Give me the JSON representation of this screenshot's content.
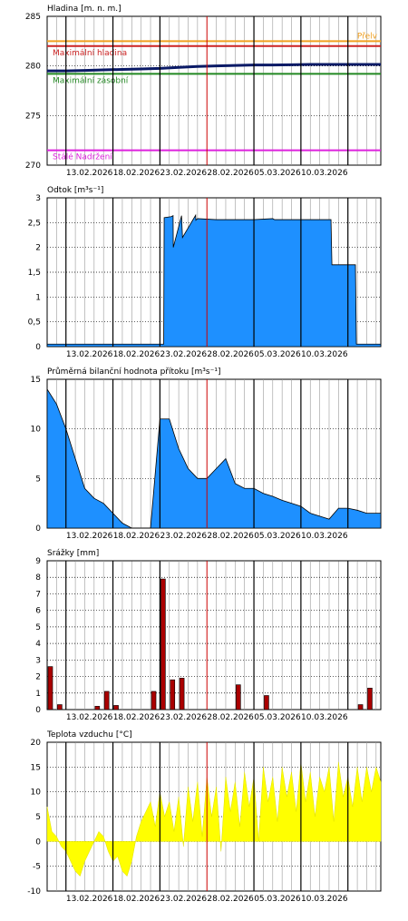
{
  "xticks": [
    "13.02.2026",
    "18.02.2026",
    "23.02.2026",
    "28.02.2026",
    "05.03.2026",
    "10.03.2026"
  ],
  "chart_data": [
    {
      "type": "line",
      "title": "Hladina [m. n. m.]",
      "ylim": [
        270,
        285
      ],
      "yticks": [
        270,
        275,
        280,
        285
      ],
      "x_unit": "days since 11.02.2026",
      "series": [
        {
          "name": "",
          "x": [
            0,
            2,
            4,
            6,
            8,
            10,
            12,
            14,
            16,
            18,
            20,
            22,
            24,
            26,
            28,
            30,
            32,
            34,
            35.5
          ],
          "values": [
            279.5,
            279.5,
            279.55,
            279.6,
            279.65,
            279.7,
            279.75,
            279.85,
            279.95,
            280.0,
            280.05,
            280.1,
            280.1,
            280.12,
            280.15,
            280.15,
            280.15,
            280.15,
            280.15
          ],
          "color": "#0a1a66"
        }
      ],
      "annotations": [
        {
          "label": "Přelv",
          "value": 282.5,
          "color": "#f0a020"
        },
        {
          "label": "Maximální hladina",
          "value": 282.0,
          "color": "#cc2222"
        },
        {
          "label": "Maximální zásobní",
          "value": 279.2,
          "color": "#228822"
        },
        {
          "label": "Stálé Nadržení",
          "value": 271.5,
          "color": "#dd22dd"
        }
      ]
    },
    {
      "type": "area",
      "title": "Odtok [m³s⁻¹]",
      "ylim": [
        0,
        3
      ],
      "yticks": [
        "0",
        "0,5",
        "1",
        "1,5",
        "2",
        "2,5",
        "3"
      ],
      "series": [
        {
          "name": "",
          "x": [
            0,
            12.4,
            12.45,
            13.2,
            13.4,
            13.42,
            14.3,
            14.4,
            15.8,
            15.82,
            16,
            18,
            20,
            22,
            24,
            24.2,
            30.2,
            30.3,
            32.8,
            32.9,
            35.5
          ],
          "values": [
            0.05,
            0.05,
            2.6,
            2.62,
            2.64,
            2.0,
            2.64,
            2.2,
            2.65,
            2.55,
            2.58,
            2.56,
            2.56,
            2.56,
            2.58,
            2.56,
            2.56,
            1.65,
            1.65,
            0.05,
            0.05
          ],
          "color": "#1e90ff"
        }
      ]
    },
    {
      "type": "area",
      "title": "Průměrná bilanční hodnota přítoku [m³s⁻¹]",
      "ylim": [
        0,
        15
      ],
      "yticks": [
        0,
        5,
        10,
        15
      ],
      "series": [
        {
          "name": "",
          "x": [
            0,
            1,
            2,
            3,
            4,
            5,
            6,
            7,
            8,
            9,
            10,
            11,
            12,
            13,
            14,
            15,
            16,
            17,
            18,
            19,
            20,
            21,
            22,
            23,
            24,
            25,
            26,
            27,
            28,
            29,
            30,
            31,
            32,
            33,
            34,
            35,
            35.5
          ],
          "values": [
            14,
            12.5,
            10,
            7,
            4,
            3,
            2.5,
            1.5,
            0.5,
            0,
            0,
            0,
            11,
            11,
            8,
            6,
            5,
            5,
            6,
            7,
            4.5,
            4,
            4,
            3.5,
            3.2,
            2.8,
            2.5,
            2.2,
            1.5,
            1.2,
            0.9,
            2.0,
            2.0,
            1.8,
            1.5,
            1.5,
            1.5
          ],
          "color": "#1e90ff"
        }
      ]
    },
    {
      "type": "bar",
      "title": "Srážky [mm]",
      "ylim": [
        0,
        9
      ],
      "yticks": [
        0,
        1,
        2,
        3,
        4,
        5,
        6,
        7,
        8,
        9
      ],
      "x": [
        0,
        1,
        5,
        6,
        7,
        11,
        12,
        13,
        14,
        20,
        23,
        33,
        34
      ],
      "values": [
        2.6,
        0.3,
        0.2,
        1.1,
        0.25,
        1.1,
        7.9,
        1.8,
        1.9,
        1.5,
        0.85,
        0.3,
        1.3
      ],
      "color": "#aa0000"
    },
    {
      "type": "area",
      "title": "Teplota vzduchu [°C]",
      "ylim": [
        -10,
        20
      ],
      "yticks": [
        -10,
        -5,
        0,
        5,
        10,
        15,
        20
      ],
      "series": [
        {
          "name": "",
          "x": [
            0,
            0.5,
            1,
            1.5,
            2,
            2.5,
            3,
            3.5,
            4,
            4.5,
            5,
            5.5,
            6,
            6.5,
            7,
            7.5,
            8,
            8.5,
            9,
            9.5,
            10,
            10.5,
            11,
            11.5,
            12,
            12.5,
            13,
            13.5,
            14,
            14.5,
            15,
            15.5,
            16,
            16.5,
            17,
            17.5,
            18,
            18.5,
            19,
            19.5,
            20,
            20.5,
            21,
            21.5,
            22,
            22.5,
            23,
            23.5,
            24,
            24.5,
            25,
            25.5,
            26,
            26.5,
            27,
            27.5,
            28,
            28.5,
            29,
            29.5,
            30,
            30.5,
            31,
            31.5,
            32,
            32.5,
            33,
            33.5,
            34,
            34.5,
            35,
            35.5
          ],
          "values": [
            7,
            2,
            1,
            -1,
            -2,
            -4,
            -6,
            -7,
            -4,
            -2,
            0,
            2,
            1,
            -2,
            -4,
            -3,
            -6,
            -7,
            -4,
            1,
            4,
            6,
            8,
            3,
            10,
            5,
            8,
            2,
            9,
            -1,
            11,
            4,
            12,
            1,
            13,
            5,
            11,
            -2,
            13,
            6,
            12,
            3,
            14,
            7,
            13,
            0,
            15,
            8,
            13,
            4,
            15,
            9,
            14,
            6,
            16,
            8,
            14,
            5,
            13,
            10,
            15,
            4,
            16,
            9,
            13,
            7,
            15,
            8,
            15,
            10,
            15,
            12
          ],
          "color": "#ffff00"
        }
      ]
    }
  ]
}
